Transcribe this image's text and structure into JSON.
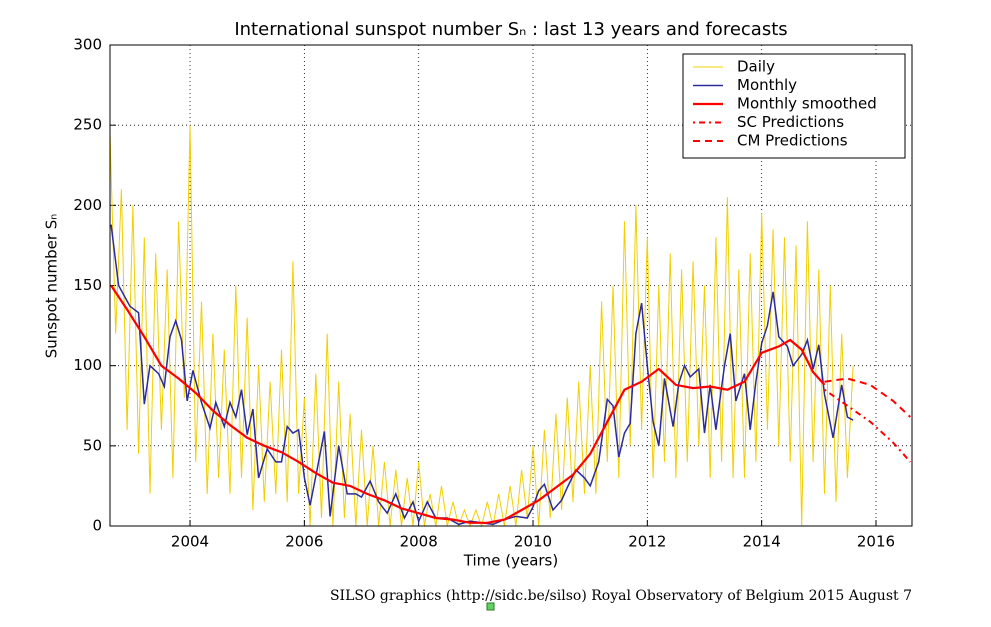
{
  "chart_data": {
    "type": "line",
    "title": "International sunspot number Sₙ : last 13 years and forecasts",
    "x_label": "Time (years)",
    "y_label": "Sunspot number Sₙ",
    "footer": "SILSO graphics (http://sidc.be/silso)  Royal Observatory of Belgium  2015 August 7",
    "xlim": [
      2002.6,
      2016.63
    ],
    "ylim": [
      0,
      300
    ],
    "xticks": [
      2004,
      2006,
      2008,
      2010,
      2012,
      2014,
      2016
    ],
    "yticks": [
      0,
      50,
      100,
      150,
      200,
      250,
      300
    ],
    "grid": true,
    "legend": "upper right",
    "series": [
      {
        "name": "Daily",
        "color": "#f0d000",
        "style": "solid",
        "width": 1,
        "x": [
          2002.6,
          2002.7,
          2002.8,
          2002.9,
          2003.0,
          2003.1,
          2003.2,
          2003.3,
          2003.4,
          2003.5,
          2003.6,
          2003.7,
          2003.8,
          2003.9,
          2004.0,
          2004.1,
          2004.2,
          2004.3,
          2004.4,
          2004.5,
          2004.6,
          2004.7,
          2004.8,
          2004.9,
          2005.0,
          2005.1,
          2005.2,
          2005.3,
          2005.4,
          2005.5,
          2005.6,
          2005.7,
          2005.8,
          2005.9,
          2006.0,
          2006.1,
          2006.2,
          2006.3,
          2006.4,
          2006.5,
          2006.6,
          2006.7,
          2006.8,
          2006.9,
          2007.0,
          2007.1,
          2007.2,
          2007.3,
          2007.4,
          2007.5,
          2007.6,
          2007.7,
          2007.8,
          2007.9,
          2008.0,
          2008.1,
          2008.2,
          2008.3,
          2008.4,
          2008.5,
          2008.6,
          2008.7,
          2008.8,
          2008.9,
          2009.0,
          2009.1,
          2009.2,
          2009.3,
          2009.4,
          2009.5,
          2009.6,
          2009.7,
          2009.8,
          2009.9,
          2010.0,
          2010.1,
          2010.2,
          2010.3,
          2010.4,
          2010.5,
          2010.6,
          2010.7,
          2010.8,
          2010.9,
          2011.0,
          2011.1,
          2011.2,
          2011.3,
          2011.4,
          2011.5,
          2011.6,
          2011.7,
          2011.8,
          2011.9,
          2012.0,
          2012.1,
          2012.2,
          2012.3,
          2012.4,
          2012.5,
          2012.6,
          2012.7,
          2012.8,
          2012.9,
          2013.0,
          2013.1,
          2013.2,
          2013.3,
          2013.4,
          2013.5,
          2013.6,
          2013.7,
          2013.8,
          2013.9,
          2014.0,
          2014.1,
          2014.2,
          2014.3,
          2014.4,
          2014.5,
          2014.6,
          2014.7,
          2014.8,
          2014.9,
          2015.0,
          2015.1,
          2015.2,
          2015.3,
          2015.4,
          2015.5,
          2015.6
        ],
        "values": [
          245,
          120,
          210,
          60,
          200,
          45,
          180,
          20,
          170,
          60,
          160,
          30,
          190,
          80,
          250,
          40,
          140,
          20,
          120,
          30,
          110,
          20,
          150,
          30,
          130,
          10,
          100,
          15,
          90,
          20,
          110,
          15,
          165,
          20,
          80,
          0,
          95,
          5,
          120,
          0,
          90,
          5,
          70,
          0,
          60,
          0,
          50,
          0,
          40,
          0,
          35,
          0,
          30,
          0,
          40,
          0,
          20,
          0,
          25,
          0,
          15,
          0,
          10,
          0,
          10,
          0,
          15,
          0,
          20,
          0,
          25,
          0,
          35,
          5,
          50,
          0,
          60,
          5,
          70,
          10,
          80,
          15,
          90,
          20,
          100,
          20,
          140,
          40,
          150,
          30,
          190,
          50,
          200,
          60,
          180,
          30,
          150,
          40,
          170,
          30,
          160,
          40,
          165,
          50,
          150,
          30,
          180,
          40,
          205,
          30,
          160,
          30,
          170,
          40,
          195,
          60,
          185,
          50,
          180,
          40,
          175,
          0,
          190,
          40,
          160,
          20,
          150,
          15,
          120,
          30,
          100
        ]
      },
      {
        "name": "Monthly",
        "color": "#2b2b9c",
        "style": "solid",
        "width": 1.5,
        "x": [
          2002.62,
          2002.75,
          2002.95,
          2003.1,
          2003.2,
          2003.3,
          2003.45,
          2003.55,
          2003.65,
          2003.75,
          2003.85,
          2003.95,
          2004.05,
          2004.2,
          2004.35,
          2004.45,
          2004.6,
          2004.7,
          2004.8,
          2004.9,
          2005.0,
          2005.1,
          2005.2,
          2005.35,
          2005.5,
          2005.6,
          2005.7,
          2005.8,
          2005.9,
          2006.0,
          2006.1,
          2006.25,
          2006.35,
          2006.45,
          2006.6,
          2006.75,
          2006.9,
          2007.0,
          2007.15,
          2007.3,
          2007.45,
          2007.6,
          2007.75,
          2007.9,
          2008.0,
          2008.15,
          2008.3,
          2008.5,
          2008.7,
          2008.9,
          2009.1,
          2009.3,
          2009.5,
          2009.7,
          2009.9,
          2010.0,
          2010.1,
          2010.2,
          2010.35,
          2010.5,
          2010.6,
          2010.75,
          2010.9,
          2011.0,
          2011.15,
          2011.3,
          2011.4,
          2011.5,
          2011.6,
          2011.7,
          2011.8,
          2011.9,
          2012.0,
          2012.1,
          2012.2,
          2012.3,
          2012.45,
          2012.55,
          2012.65,
          2012.75,
          2012.9,
          2013.0,
          2013.1,
          2013.2,
          2013.35,
          2013.45,
          2013.55,
          2013.7,
          2013.8,
          2013.9,
          2014.0,
          2014.1,
          2014.2,
          2014.3,
          2014.45,
          2014.55,
          2014.7,
          2014.8,
          2014.9,
          2015.0,
          2015.1,
          2015.25,
          2015.4,
          2015.5,
          2015.6
        ],
        "values": [
          188,
          150,
          137,
          133,
          76,
          100,
          95,
          87,
          118,
          128,
          116,
          78,
          97,
          77,
          61,
          77,
          62,
          77,
          68,
          85,
          57,
          73,
          30,
          48,
          40,
          40,
          62,
          58,
          60,
          30,
          13,
          40,
          59,
          6,
          50,
          20,
          20,
          18,
          28,
          15,
          8,
          20,
          5,
          15,
          3,
          15,
          5,
          5,
          1,
          3,
          2,
          1,
          4,
          6,
          5,
          12,
          22,
          26,
          10,
          16,
          24,
          35,
          30,
          25,
          40,
          79,
          75,
          43,
          58,
          64,
          120,
          139,
          100,
          65,
          50,
          92,
          62,
          89,
          100,
          93,
          98,
          58,
          88,
          60,
          100,
          120,
          78,
          95,
          60,
          90,
          114,
          125,
          146,
          118,
          112,
          100,
          107,
          116,
          98,
          113,
          82,
          55,
          88,
          68,
          66
        ]
      },
      {
        "name": "Monthly smoothed",
        "color": "#ff0000",
        "style": "solid",
        "width": 2.2,
        "x": [
          2002.62,
          2002.9,
          2003.2,
          2003.5,
          2003.8,
          2004.1,
          2004.4,
          2004.7,
          2005.0,
          2005.3,
          2005.6,
          2005.9,
          2006.2,
          2006.5,
          2006.8,
          2007.1,
          2007.4,
          2007.7,
          2008.0,
          2008.3,
          2008.6,
          2008.9,
          2009.2,
          2009.5,
          2009.8,
          2010.1,
          2010.4,
          2010.7,
          2011.0,
          2011.3,
          2011.6,
          2011.9,
          2012.2,
          2012.5,
          2012.8,
          2013.1,
          2013.4,
          2013.7,
          2014.0,
          2014.3,
          2014.5,
          2014.7,
          2014.9,
          2015.1
        ],
        "values": [
          150,
          135,
          118,
          100,
          92,
          83,
          72,
          63,
          55,
          50,
          46,
          40,
          33,
          27,
          25,
          20,
          16,
          11,
          8,
          5,
          4,
          2,
          2,
          4,
          10,
          16,
          24,
          32,
          45,
          65,
          85,
          90,
          98,
          88,
          86,
          87,
          85,
          90,
          108,
          112,
          116,
          110,
          96,
          88
        ]
      },
      {
        "name": "SC Predictions",
        "color": "#ff0000",
        "style": "dashdot",
        "width": 2,
        "x": [
          2015.1,
          2015.5,
          2015.9,
          2016.3,
          2016.6
        ],
        "values": [
          85,
          75,
          65,
          52,
          40
        ]
      },
      {
        "name": "CM Predictions",
        "color": "#ff0000",
        "style": "dashed",
        "width": 2,
        "x": [
          2015.1,
          2015.5,
          2015.9,
          2016.3,
          2016.6
        ],
        "values": [
          90,
          92,
          88,
          78,
          68
        ]
      }
    ]
  }
}
